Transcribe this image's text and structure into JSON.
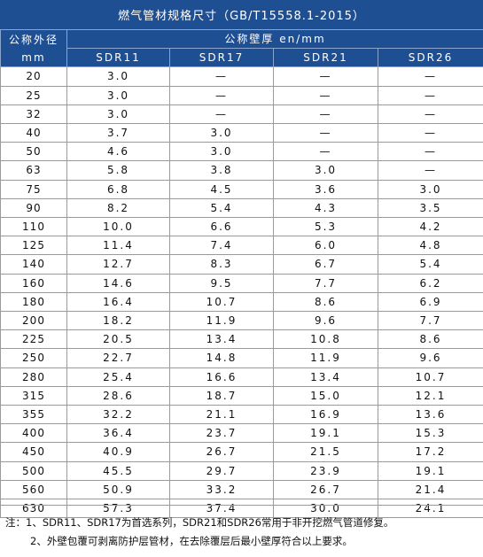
{
  "title": "燃气管材规格尺寸（GB/T15558.1-2015）",
  "header": {
    "od_label": "公称外径",
    "od_unit": "mm",
    "group_label": "公称壁厚 en/mm",
    "columns": [
      "SDR11",
      "SDR17",
      "SDR21",
      "SDR26"
    ]
  },
  "rows": [
    {
      "od": "20",
      "sdr11": "3.0",
      "sdr17": "—",
      "sdr21": "—",
      "sdr26": "—"
    },
    {
      "od": "25",
      "sdr11": "3.0",
      "sdr17": "—",
      "sdr21": "—",
      "sdr26": "—"
    },
    {
      "od": "32",
      "sdr11": "3.0",
      "sdr17": "—",
      "sdr21": "—",
      "sdr26": "—"
    },
    {
      "od": "40",
      "sdr11": "3.7",
      "sdr17": "3.0",
      "sdr21": "—",
      "sdr26": "—"
    },
    {
      "od": "50",
      "sdr11": "4.6",
      "sdr17": "3.0",
      "sdr21": "—",
      "sdr26": "—"
    },
    {
      "od": "63",
      "sdr11": "5.8",
      "sdr17": "3.8",
      "sdr21": "3.0",
      "sdr26": "—"
    },
    {
      "od": "75",
      "sdr11": "6.8",
      "sdr17": "4.5",
      "sdr21": "3.6",
      "sdr26": "3.0"
    },
    {
      "od": "90",
      "sdr11": "8.2",
      "sdr17": "5.4",
      "sdr21": "4.3",
      "sdr26": "3.5"
    },
    {
      "od": "110",
      "sdr11": "10.0",
      "sdr17": "6.6",
      "sdr21": "5.3",
      "sdr26": "4.2"
    },
    {
      "od": "125",
      "sdr11": "11.4",
      "sdr17": "7.4",
      "sdr21": "6.0",
      "sdr26": "4.8"
    },
    {
      "od": "140",
      "sdr11": "12.7",
      "sdr17": "8.3",
      "sdr21": "6.7",
      "sdr26": "5.4"
    },
    {
      "od": "160",
      "sdr11": "14.6",
      "sdr17": "9.5",
      "sdr21": "7.7",
      "sdr26": "6.2"
    },
    {
      "od": "180",
      "sdr11": "16.4",
      "sdr17": "10.7",
      "sdr21": "8.6",
      "sdr26": "6.9"
    },
    {
      "od": "200",
      "sdr11": "18.2",
      "sdr17": "11.9",
      "sdr21": "9.6",
      "sdr26": "7.7"
    },
    {
      "od": "225",
      "sdr11": "20.5",
      "sdr17": "13.4",
      "sdr21": "10.8",
      "sdr26": "8.6"
    },
    {
      "od": "250",
      "sdr11": "22.7",
      "sdr17": "14.8",
      "sdr21": "11.9",
      "sdr26": "9.6"
    },
    {
      "od": "280",
      "sdr11": "25.4",
      "sdr17": "16.6",
      "sdr21": "13.4",
      "sdr26": "10.7"
    },
    {
      "od": "315",
      "sdr11": "28.6",
      "sdr17": "18.7",
      "sdr21": "15.0",
      "sdr26": "12.1"
    },
    {
      "od": "355",
      "sdr11": "32.2",
      "sdr17": "21.1",
      "sdr21": "16.9",
      "sdr26": "13.6"
    },
    {
      "od": "400",
      "sdr11": "36.4",
      "sdr17": "23.7",
      "sdr21": "19.1",
      "sdr26": "15.3"
    },
    {
      "od": "450",
      "sdr11": "40.9",
      "sdr17": "26.7",
      "sdr21": "21.5",
      "sdr26": "17.2"
    },
    {
      "od": "500",
      "sdr11": "45.5",
      "sdr17": "29.7",
      "sdr21": "23.9",
      "sdr26": "19.1"
    },
    {
      "od": "560",
      "sdr11": "50.9",
      "sdr17": "33.2",
      "sdr21": "26.7",
      "sdr26": "21.4"
    },
    {
      "od": "630",
      "sdr11": "57.3",
      "sdr17": "37.4",
      "sdr21": "30.0",
      "sdr26": "24.1"
    }
  ],
  "notes": [
    "注：1、SDR11、SDR17为首选系列，SDR21和SDR26常用于非开挖燃气管道修复。",
    "2、外壁包覆可剥离防护层管材，在去除覆层后最小壁厚符合以上要求。"
  ],
  "colors": {
    "header_bg": "#1f4f93",
    "border": "#9a9a9a"
  }
}
